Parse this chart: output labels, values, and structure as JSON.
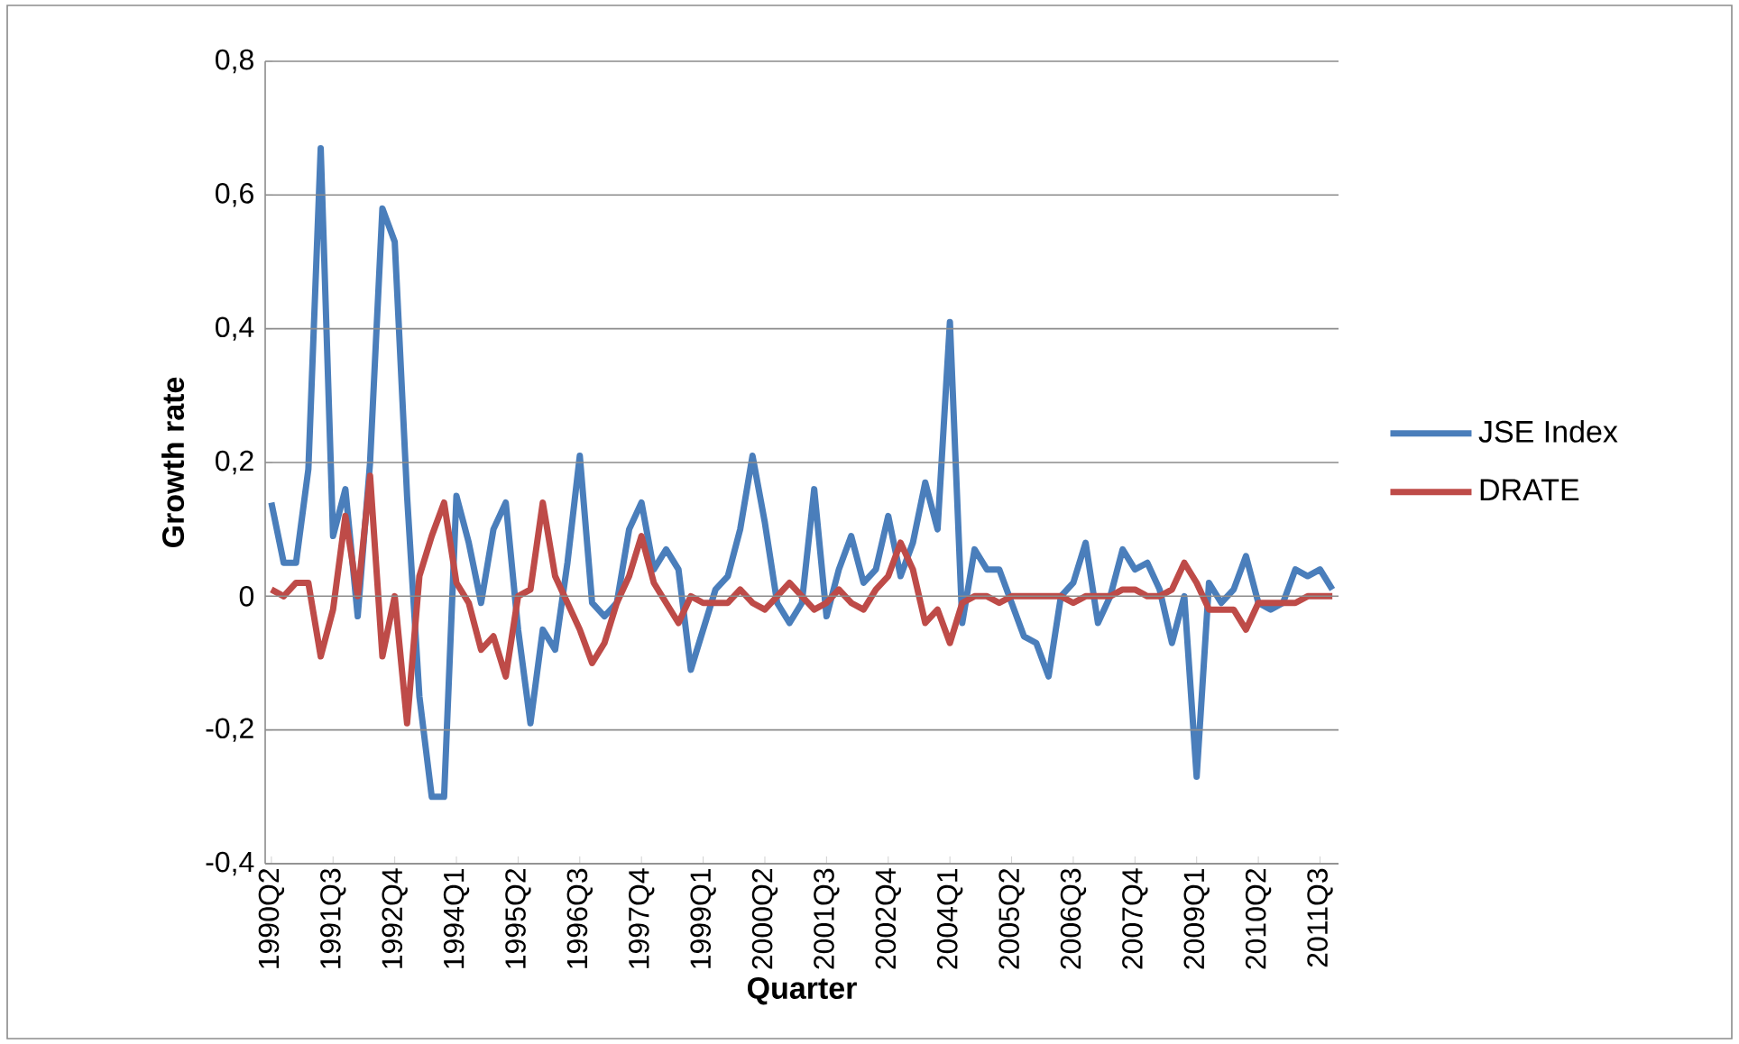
{
  "chart_data": {
    "type": "line",
    "xlabel": "Quarter",
    "ylabel": "Growth rate",
    "categories": [
      "1990Q2",
      null,
      null,
      null,
      null,
      "1991Q3",
      null,
      null,
      null,
      null,
      "1992Q4",
      null,
      null,
      null,
      null,
      "1994Q1",
      null,
      null,
      null,
      null,
      "1995Q2",
      null,
      null,
      null,
      null,
      "1996Q3",
      null,
      null,
      null,
      null,
      "1997Q4",
      null,
      null,
      null,
      null,
      "1999Q1",
      null,
      null,
      null,
      null,
      "2000Q2",
      null,
      null,
      null,
      null,
      "2001Q3",
      null,
      null,
      null,
      null,
      "2002Q4",
      null,
      null,
      null,
      null,
      "2004Q1",
      null,
      null,
      null,
      null,
      "2005Q2",
      null,
      null,
      null,
      null,
      "2006Q3",
      null,
      null,
      null,
      null,
      "2007Q4",
      null,
      null,
      null,
      null,
      "2009Q1",
      null,
      null,
      null,
      null,
      "2010Q2",
      null,
      null,
      null,
      null,
      "2011Q3",
      null
    ],
    "series": [
      {
        "name": "JSE Index",
        "color": "#4a7ebb",
        "values": [
          0.14,
          0.05,
          0.05,
          0.19,
          0.67,
          0.09,
          0.16,
          -0.03,
          0.2,
          0.58,
          0.53,
          0.15,
          -0.15,
          -0.3,
          -0.3,
          0.15,
          0.08,
          -0.01,
          0.1,
          0.14,
          -0.05,
          -0.19,
          -0.05,
          -0.08,
          0.05,
          0.21,
          -0.01,
          -0.03,
          -0.01,
          0.1,
          0.14,
          0.04,
          0.07,
          0.04,
          -0.11,
          -0.05,
          0.01,
          0.03,
          0.1,
          0.21,
          0.11,
          -0.01,
          -0.04,
          -0.01,
          0.16,
          -0.03,
          0.04,
          0.09,
          0.02,
          0.04,
          0.12,
          0.03,
          0.08,
          0.17,
          0.1,
          0.41,
          -0.04,
          0.07,
          0.04,
          0.04,
          -0.01,
          -0.06,
          -0.07,
          -0.12,
          0.0,
          0.02,
          0.08,
          -0.04,
          0.0,
          0.07,
          0.04,
          0.05,
          0.01,
          -0.07,
          0.0,
          -0.27,
          0.02,
          -0.01,
          0.01,
          0.06,
          -0.01,
          -0.02,
          -0.01,
          0.04,
          0.03,
          0.04,
          0.01
        ]
      },
      {
        "name": "DRATE",
        "color": "#be4b48",
        "values": [
          0.01,
          0.0,
          0.02,
          0.02,
          -0.09,
          -0.02,
          0.12,
          0.0,
          0.18,
          -0.09,
          0.0,
          -0.19,
          0.03,
          0.09,
          0.14,
          0.02,
          -0.01,
          -0.08,
          -0.06,
          -0.12,
          0.0,
          0.01,
          0.14,
          0.03,
          -0.01,
          -0.05,
          -0.1,
          -0.07,
          -0.01,
          0.03,
          0.09,
          0.02,
          -0.01,
          -0.04,
          0.0,
          -0.01,
          -0.01,
          -0.01,
          0.01,
          -0.01,
          -0.02,
          0.0,
          0.02,
          0.0,
          -0.02,
          -0.01,
          0.01,
          -0.01,
          -0.02,
          0.01,
          0.03,
          0.08,
          0.04,
          -0.04,
          -0.02,
          -0.07,
          -0.01,
          0.0,
          0.0,
          -0.01,
          0.0,
          0.0,
          0.0,
          0.0,
          0.0,
          -0.01,
          0.0,
          0.0,
          0.0,
          0.01,
          0.01,
          0.0,
          0.0,
          0.01,
          0.05,
          0.02,
          -0.02,
          -0.02,
          -0.02,
          -0.05,
          -0.01,
          -0.01,
          -0.01,
          -0.01,
          0.0,
          0.0,
          0.0
        ]
      }
    ],
    "ylim": [
      -0.4,
      0.8
    ],
    "yticks": [
      {
        "value": -0.4,
        "label": "-0,4"
      },
      {
        "value": -0.2,
        "label": "-0,2"
      },
      {
        "value": 0,
        "label": "0"
      },
      {
        "value": 0.2,
        "label": "0,2"
      },
      {
        "value": 0.4,
        "label": "0,4"
      },
      {
        "value": 0.6,
        "label": "0,6"
      },
      {
        "value": 0.8,
        "label": "0,8"
      }
    ],
    "grid": "y",
    "legend": "right"
  }
}
